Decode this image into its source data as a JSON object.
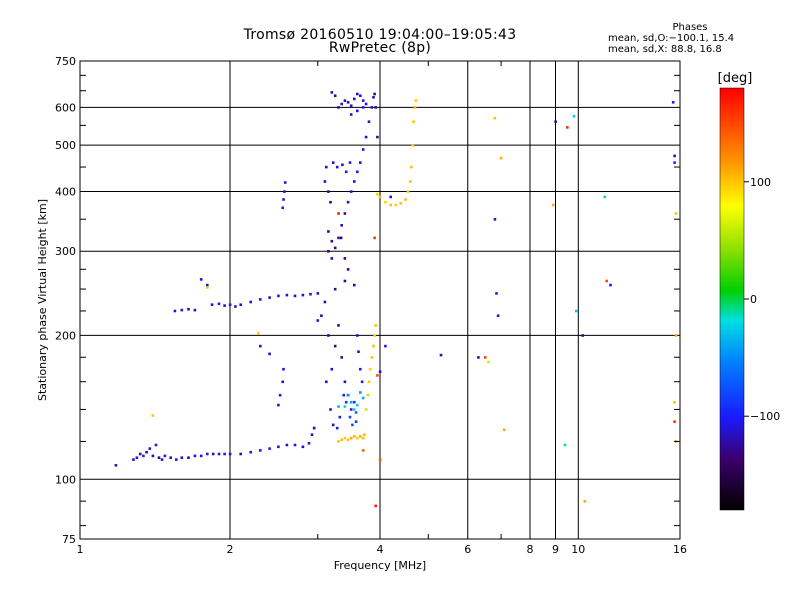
{
  "header": {
    "title_line1": "Tromsø 20160510 19:04:00–19:05:43",
    "title_line2": "RwPretec (8p)",
    "phases_heading": "Phases",
    "phases_o": "mean, sd,O:−100.1, 15.4",
    "phases_x": "mean, sd,X:  88.8, 16.8"
  },
  "colorbar": {
    "unit_label": "[deg]",
    "range": [
      -180,
      180
    ],
    "ticks": [
      100,
      0,
      -100
    ],
    "tick_labels": [
      "100",
      "0",
      "−100"
    ]
  },
  "chart_data": {
    "type": "scatter",
    "xlabel": "Frequency [MHz]",
    "ylabel": "Stationary phase Virtual Height [km]",
    "xscale": "log",
    "yscale": "log",
    "xlim": [
      1,
      16
    ],
    "ylim": [
      75,
      750
    ],
    "grid": true,
    "x_ticks": [
      1,
      2,
      4,
      6,
      8,
      9,
      10,
      16
    ],
    "x_tick_labels": [
      "1",
      "2",
      "4",
      "6",
      "8",
      "9",
      "10",
      "16"
    ],
    "y_ticks": [
      75,
      100,
      200,
      300,
      400,
      500,
      600,
      750
    ],
    "y_tick_labels": [
      "75",
      "100",
      "200",
      "300",
      "400",
      "500",
      "600",
      "750"
    ],
    "points": [
      [
        1.18,
        107,
        -110
      ],
      [
        1.28,
        110,
        -112
      ],
      [
        1.3,
        111,
        -105
      ],
      [
        1.32,
        113,
        -118
      ],
      [
        1.34,
        112,
        -100
      ],
      [
        1.36,
        114,
        -122
      ],
      [
        1.38,
        116,
        -108
      ],
      [
        1.4,
        112,
        -115
      ],
      [
        1.42,
        118,
        -102
      ],
      [
        1.44,
        111,
        -125
      ],
      [
        1.46,
        110,
        -110
      ],
      [
        1.48,
        112,
        -104
      ],
      [
        1.52,
        111,
        -116
      ],
      [
        1.56,
        110,
        -106
      ],
      [
        1.6,
        111,
        -112
      ],
      [
        1.65,
        111,
        -120
      ],
      [
        1.7,
        112,
        -108
      ],
      [
        1.75,
        112,
        -110
      ],
      [
        1.8,
        113,
        -104
      ],
      [
        1.85,
        113,
        -116
      ],
      [
        1.9,
        113,
        -110
      ],
      [
        1.95,
        113,
        -102
      ],
      [
        2.0,
        113,
        -112
      ],
      [
        2.1,
        113,
        -118
      ],
      [
        2.2,
        114,
        -108
      ],
      [
        2.3,
        115,
        -110
      ],
      [
        2.4,
        116,
        -104
      ],
      [
        2.5,
        117,
        -114
      ],
      [
        2.6,
        118,
        -110
      ],
      [
        2.7,
        118,
        -106
      ],
      [
        2.8,
        117,
        -112
      ],
      [
        2.88,
        119,
        -104
      ],
      [
        2.92,
        124,
        -110
      ],
      [
        2.95,
        128,
        -100
      ],
      [
        1.55,
        225,
        -110
      ],
      [
        1.6,
        226,
        -104
      ],
      [
        1.65,
        227,
        -118
      ],
      [
        1.7,
        226,
        -108
      ],
      [
        1.84,
        232,
        -112
      ],
      [
        1.9,
        233,
        -106
      ],
      [
        1.95,
        231,
        -114
      ],
      [
        2.0,
        232,
        -102
      ],
      [
        2.05,
        230,
        -110
      ],
      [
        2.1,
        232,
        -118
      ],
      [
        2.2,
        235,
        -108
      ],
      [
        2.3,
        238,
        -104
      ],
      [
        2.4,
        240,
        -112
      ],
      [
        2.5,
        242,
        -106
      ],
      [
        2.6,
        243,
        -110
      ],
      [
        2.7,
        242,
        -116
      ],
      [
        2.8,
        243,
        -108
      ],
      [
        2.9,
        244,
        -112
      ],
      [
        3.0,
        245,
        -104
      ],
      [
        1.75,
        262,
        -110
      ],
      [
        1.8,
        255,
        -115
      ],
      [
        2.55,
        370,
        -105
      ],
      [
        2.56,
        385,
        -110
      ],
      [
        2.57,
        400,
        -112
      ],
      [
        2.58,
        418,
        -108
      ],
      [
        2.5,
        143,
        -110
      ],
      [
        2.52,
        150,
        -104
      ],
      [
        2.55,
        160,
        -112
      ],
      [
        2.56,
        170,
        -108
      ],
      [
        1.8,
        252,
        100
      ],
      [
        1.4,
        136,
        100
      ],
      [
        2.4,
        183,
        -120
      ],
      [
        2.3,
        190,
        -110
      ],
      [
        2.28,
        202,
        100
      ],
      [
        3.1,
        235,
        -120
      ],
      [
        3.15,
        200,
        -128
      ],
      [
        3.2,
        170,
        -118
      ],
      [
        3.25,
        190,
        -130
      ],
      [
        3.3,
        210,
        -120
      ],
      [
        3.35,
        180,
        -125
      ],
      [
        3.4,
        160,
        -118
      ],
      [
        3.45,
        150,
        -110
      ],
      [
        3.5,
        140,
        -100
      ],
      [
        3.55,
        145,
        -90
      ],
      [
        3.12,
        160,
        -115
      ],
      [
        3.18,
        140,
        -108
      ],
      [
        3.22,
        130,
        -112
      ],
      [
        3.28,
        128,
        -100
      ],
      [
        3.32,
        135,
        -105
      ],
      [
        3.38,
        150,
        -95
      ],
      [
        3.42,
        145,
        -90
      ],
      [
        3.48,
        135,
        -80
      ],
      [
        3.52,
        130,
        -75
      ],
      [
        3.58,
        132,
        -85
      ],
      [
        3.05,
        220,
        -120
      ],
      [
        3.25,
        250,
        -125
      ],
      [
        3.4,
        260,
        -130
      ],
      [
        3.45,
        275,
        -128
      ],
      [
        3.55,
        255,
        -122
      ],
      [
        3.6,
        200,
        -118
      ],
      [
        3.62,
        185,
        -110
      ],
      [
        3.65,
        170,
        -105
      ],
      [
        3.68,
        160,
        -100
      ],
      [
        3.15,
        330,
        -130
      ],
      [
        3.2,
        315,
        -125
      ],
      [
        3.25,
        305,
        -128
      ],
      [
        3.3,
        320,
        -122
      ],
      [
        3.35,
        340,
        -118
      ],
      [
        3.4,
        360,
        -120
      ],
      [
        3.45,
        380,
        -112
      ],
      [
        3.5,
        400,
        -115
      ],
      [
        3.55,
        420,
        -110
      ],
      [
        3.6,
        440,
        -105
      ],
      [
        3.65,
        460,
        -108
      ],
      [
        3.7,
        490,
        -110
      ],
      [
        3.75,
        520,
        -112
      ],
      [
        3.8,
        560,
        -108
      ],
      [
        3.85,
        600,
        -110
      ],
      [
        3.88,
        630,
        -112
      ],
      [
        3.1,
        420,
        -120
      ],
      [
        3.12,
        450,
        -118
      ],
      [
        3.15,
        400,
        -125
      ],
      [
        3.18,
        380,
        -130
      ],
      [
        3.22,
        460,
        -115
      ],
      [
        3.28,
        450,
        -110
      ],
      [
        3.36,
        455,
        -112
      ],
      [
        3.42,
        440,
        -108
      ],
      [
        3.48,
        460,
        -105
      ],
      [
        3.3,
        360,
        170
      ],
      [
        3.34,
        320,
        -140
      ],
      [
        3.4,
        290,
        -135
      ],
      [
        3.2,
        290,
        -128
      ],
      [
        3.15,
        300,
        -130
      ],
      [
        3.3,
        600,
        -120
      ],
      [
        3.35,
        610,
        -115
      ],
      [
        3.4,
        620,
        -118
      ],
      [
        3.45,
        615,
        -112
      ],
      [
        3.5,
        605,
        -110
      ],
      [
        3.55,
        625,
        -115
      ],
      [
        3.6,
        640,
        -120
      ],
      [
        3.65,
        635,
        -110
      ],
      [
        3.7,
        620,
        -108
      ],
      [
        3.75,
        610,
        -112
      ],
      [
        3.2,
        645,
        -118
      ],
      [
        3.25,
        635,
        -125
      ],
      [
        3.5,
        580,
        -110
      ],
      [
        3.6,
        590,
        -105
      ],
      [
        3.7,
        600,
        -100
      ],
      [
        3.9,
        640,
        -130
      ],
      [
        3.92,
        600,
        -125
      ],
      [
        3.95,
        520,
        -130
      ],
      [
        3.3,
        120,
        100
      ],
      [
        3.35,
        121,
        105
      ],
      [
        3.4,
        122,
        98
      ],
      [
        3.45,
        121,
        102
      ],
      [
        3.5,
        122,
        110
      ],
      [
        3.55,
        123,
        104
      ],
      [
        3.6,
        122,
        96
      ],
      [
        3.65,
        123,
        108
      ],
      [
        3.7,
        122,
        100
      ],
      [
        3.72,
        124,
        102
      ],
      [
        3.75,
        140,
        95
      ],
      [
        3.78,
        150,
        98
      ],
      [
        3.8,
        160,
        100
      ],
      [
        3.82,
        170,
        95
      ],
      [
        3.85,
        180,
        100
      ],
      [
        3.88,
        190,
        102
      ],
      [
        3.9,
        200,
        96
      ],
      [
        3.92,
        210,
        100
      ],
      [
        4.1,
        380,
        98
      ],
      [
        4.2,
        375,
        102
      ],
      [
        4.3,
        375,
        96
      ],
      [
        4.4,
        378,
        100
      ],
      [
        4.5,
        385,
        104
      ],
      [
        4.55,
        400,
        98
      ],
      [
        4.6,
        420,
        100
      ],
      [
        4.62,
        450,
        102
      ],
      [
        4.65,
        500,
        96
      ],
      [
        4.67,
        560,
        100
      ],
      [
        4.7,
        600,
        104
      ],
      [
        4.72,
        620,
        98
      ],
      [
        4.0,
        390,
        100
      ],
      [
        3.95,
        395,
        95
      ],
      [
        3.9,
        320,
        160
      ],
      [
        3.95,
        165,
        150
      ],
      [
        3.92,
        88,
        170
      ],
      [
        3.3,
        142,
        -30
      ],
      [
        3.4,
        142,
        -20
      ],
      [
        3.5,
        145,
        -40
      ],
      [
        3.6,
        143,
        -25
      ],
      [
        3.7,
        148,
        -35
      ],
      [
        3.65,
        152,
        -45
      ],
      [
        3.55,
        140,
        -15
      ],
      [
        3.45,
        150,
        -50
      ],
      [
        3.58,
        138,
        -60
      ],
      [
        4.0,
        168,
        -110
      ],
      [
        4.1,
        190,
        -105
      ],
      [
        4.2,
        390,
        -112
      ],
      [
        5.3,
        182,
        -115
      ],
      [
        6.3,
        180,
        -120
      ],
      [
        6.5,
        180,
        150
      ],
      [
        6.6,
        176,
        60
      ],
      [
        6.8,
        350,
        -110
      ],
      [
        6.85,
        245,
        -105
      ],
      [
        6.9,
        220,
        -112
      ],
      [
        6.8,
        570,
        100
      ],
      [
        7.0,
        470,
        110
      ],
      [
        7.1,
        127,
        110
      ],
      [
        8.9,
        375,
        110
      ],
      [
        9.0,
        560,
        -120
      ],
      [
        9.5,
        545,
        160
      ],
      [
        9.8,
        575,
        -20
      ],
      [
        9.9,
        225,
        -25
      ],
      [
        10.2,
        200,
        -130
      ],
      [
        9.4,
        118,
        -10
      ],
      [
        10.3,
        90,
        110
      ],
      [
        11.3,
        390,
        -10
      ],
      [
        11.4,
        260,
        150
      ],
      [
        11.6,
        255,
        -105
      ],
      [
        15.5,
        615,
        -105
      ],
      [
        15.6,
        475,
        -120
      ],
      [
        15.6,
        460,
        -100
      ],
      [
        15.7,
        360,
        100
      ],
      [
        15.7,
        200,
        110
      ],
      [
        15.6,
        145,
        100
      ],
      [
        15.6,
        132,
        160
      ],
      [
        15.7,
        120,
        110
      ],
      [
        4.0,
        110,
        140
      ],
      [
        3.7,
        115,
        140
      ],
      [
        2.95,
        128,
        -115
      ],
      [
        3.0,
        215,
        -115
      ]
    ]
  }
}
